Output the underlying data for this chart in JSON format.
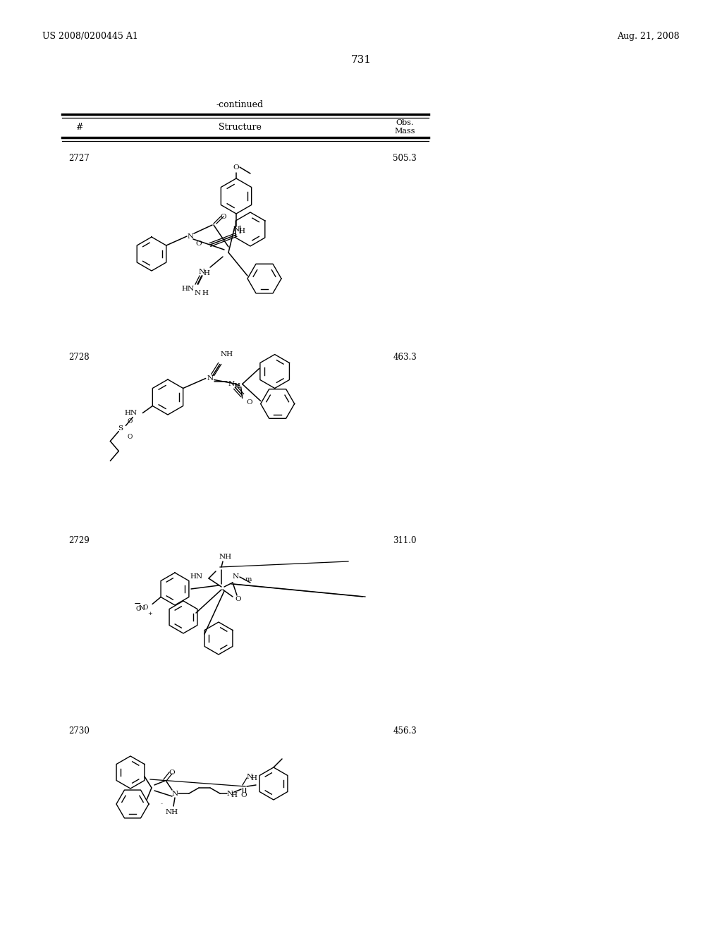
{
  "page_left": "US 2008/0200445 A1",
  "page_right": "Aug. 21, 2008",
  "page_num": "731",
  "table_title": "-continued",
  "col_hash": "#",
  "col_structure": "Structure",
  "col_obs": "Obs.",
  "col_mass": "Mass",
  "rows": [
    {
      "id": "2727",
      "mass": "505.3"
    },
    {
      "id": "2728",
      "mass": "463.3"
    },
    {
      "id": "2729",
      "mass": "311.0"
    },
    {
      "id": "2730",
      "mass": "456.3"
    }
  ],
  "bg": "#ffffff",
  "fg": "#000000"
}
